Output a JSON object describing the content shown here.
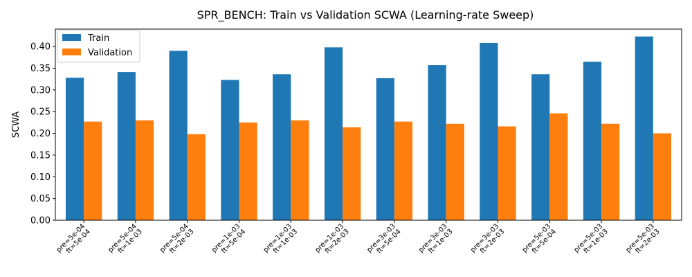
{
  "chart_data": {
    "type": "bar",
    "title": "SPR_BENCH: Train vs Validation SCWA (Learning-rate Sweep)",
    "xlabel": "",
    "ylabel": "SCWA",
    "ylim": [
      0,
      0.44
    ],
    "yticks": [
      "0.00",
      "0.05",
      "0.10",
      "0.15",
      "0.20",
      "0.25",
      "0.30",
      "0.35",
      "0.40"
    ],
    "grid": false,
    "legend_position": "top-left",
    "categories": [
      [
        "pre=5e-04",
        "ft=5e-04"
      ],
      [
        "pre=5e-04",
        "ft=1e-03"
      ],
      [
        "pre=5e-04",
        "ft=2e-03"
      ],
      [
        "pre=1e-03",
        "ft=5e-04"
      ],
      [
        "pre=1e-03",
        "ft=1e-03"
      ],
      [
        "pre=1e-03",
        "ft=2e-03"
      ],
      [
        "pre=3e-03",
        "ft=5e-04"
      ],
      [
        "pre=3e-03",
        "ft=1e-03"
      ],
      [
        "pre=3e-03",
        "ft=2e-03"
      ],
      [
        "pre=5e-03",
        "ft=5e-04"
      ],
      [
        "pre=5e-03",
        "ft=1e-03"
      ],
      [
        "pre=5e-03",
        "ft=2e-03"
      ]
    ],
    "series": [
      {
        "name": "Train",
        "color": "#1f77b4",
        "values": [
          0.328,
          0.341,
          0.39,
          0.323,
          0.336,
          0.398,
          0.327,
          0.357,
          0.408,
          0.336,
          0.365,
          0.423
        ]
      },
      {
        "name": "Validation",
        "color": "#ff7f0e",
        "values": [
          0.227,
          0.23,
          0.198,
          0.225,
          0.23,
          0.214,
          0.227,
          0.222,
          0.216,
          0.246,
          0.222,
          0.2
        ]
      }
    ]
  }
}
